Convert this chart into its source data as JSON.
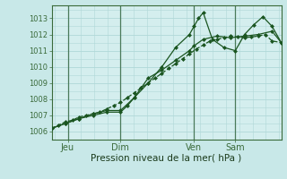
{
  "title": "",
  "xlabel": "Pression niveau de la mer( hPa )",
  "ylabel": "",
  "bg_color": "#c8e8e8",
  "plot_bg_color": "#d4eeee",
  "grid_color": "#b0d8d8",
  "vline_color": "#4a7a5a",
  "line_color": "#1a5520",
  "ylim": [
    1005.5,
    1013.8
  ],
  "xlim": [
    0,
    100
  ],
  "yticks": [
    1006,
    1007,
    1008,
    1009,
    1010,
    1011,
    1012,
    1013
  ],
  "xtick_positions": [
    7,
    30,
    62,
    80
  ],
  "xtick_labels": [
    "Jeu",
    "Dim",
    "Ven",
    "Sam"
  ],
  "vlines": [
    7,
    30,
    62,
    80
  ],
  "line1_x": [
    0,
    3,
    6,
    9,
    12,
    15,
    18,
    21,
    24,
    27,
    30,
    33,
    36,
    39,
    42,
    45,
    48,
    51,
    54,
    57,
    60,
    63,
    66,
    69,
    72,
    75,
    78,
    81,
    84,
    87,
    90,
    93,
    96,
    100
  ],
  "line1_y": [
    1006.2,
    1006.4,
    1006.6,
    1006.7,
    1006.9,
    1007.0,
    1007.1,
    1007.2,
    1007.4,
    1007.6,
    1007.8,
    1008.1,
    1008.4,
    1008.7,
    1009.0,
    1009.3,
    1009.6,
    1009.9,
    1010.2,
    1010.5,
    1010.8,
    1011.1,
    1011.35,
    1011.6,
    1011.7,
    1011.8,
    1011.9,
    1011.85,
    1011.8,
    1011.85,
    1011.9,
    1012.0,
    1011.6,
    1011.5
  ],
  "line2_x": [
    0,
    6,
    12,
    18,
    24,
    30,
    33,
    36,
    39,
    42,
    48,
    54,
    60,
    62,
    66,
    72,
    78,
    84,
    90,
    96,
    100
  ],
  "line2_y": [
    1006.2,
    1006.5,
    1006.8,
    1007.0,
    1007.2,
    1007.2,
    1007.6,
    1008.1,
    1008.7,
    1009.3,
    1009.8,
    1010.4,
    1011.0,
    1011.3,
    1011.7,
    1011.9,
    1011.8,
    1011.9,
    1012.0,
    1012.2,
    1011.5
  ],
  "line3_x": [
    0,
    6,
    12,
    18,
    24,
    30,
    36,
    42,
    48,
    54,
    60,
    62,
    64,
    66,
    70,
    75,
    80,
    84,
    88,
    92,
    96,
    100
  ],
  "line3_y": [
    1006.2,
    1006.5,
    1006.8,
    1007.1,
    1007.3,
    1007.3,
    1008.1,
    1009.0,
    1010.0,
    1011.2,
    1012.0,
    1012.5,
    1013.0,
    1013.35,
    1011.7,
    1011.2,
    1011.0,
    1012.0,
    1012.6,
    1013.1,
    1012.5,
    1011.5
  ],
  "marker_size": 2.5,
  "line_width": 0.9,
  "xlabel_fontsize": 7.5,
  "ytick_fontsize": 6,
  "xtick_fontsize": 7
}
